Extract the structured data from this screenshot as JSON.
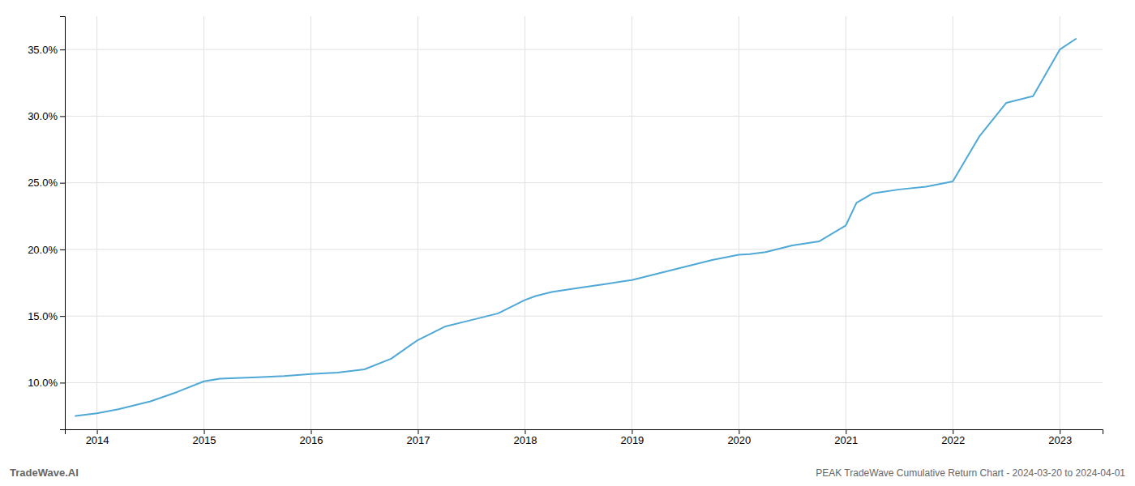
{
  "chart_data": {
    "type": "line",
    "title": "PEAK TradeWave Cumulative Return Chart - 2024-03-20 to 2024-04-01",
    "annotations": [
      "TradeWave.AI"
    ],
    "color": "#4fa8d5",
    "x": [
      2013.8,
      2014.0,
      2014.2,
      2014.5,
      2014.75,
      2015.0,
      2015.15,
      2015.3,
      2015.5,
      2015.75,
      2016.0,
      2016.1,
      2016.25,
      2016.5,
      2016.75,
      2017.0,
      2017.25,
      2017.5,
      2017.75,
      2018.0,
      2018.1,
      2018.25,
      2018.5,
      2018.75,
      2019.0,
      2019.25,
      2019.5,
      2019.75,
      2020.0,
      2020.1,
      2020.25,
      2020.5,
      2020.75,
      2021.0,
      2021.1,
      2021.25,
      2021.5,
      2021.75,
      2022.0,
      2022.25,
      2022.5,
      2022.75,
      2023.0,
      2023.15
    ],
    "values": [
      7.5,
      7.7,
      8.0,
      8.6,
      9.3,
      10.1,
      10.3,
      10.35,
      10.4,
      10.5,
      10.65,
      10.7,
      10.75,
      11.0,
      11.8,
      13.2,
      14.2,
      14.7,
      15.2,
      16.2,
      16.5,
      16.8,
      17.1,
      17.4,
      17.7,
      18.2,
      18.7,
      19.2,
      19.6,
      19.65,
      19.8,
      20.3,
      20.6,
      21.8,
      23.5,
      24.2,
      24.5,
      24.7,
      25.1,
      28.5,
      31.0,
      31.5,
      35.0,
      35.8
    ],
    "xlim": [
      2013.7,
      2023.4
    ],
    "ylim": [
      6.5,
      37.5
    ],
    "xticks": [
      2014,
      2015,
      2016,
      2017,
      2018,
      2019,
      2020,
      2021,
      2022,
      2023
    ],
    "yticks": [
      {
        "value": 10.0,
        "label": "10.0%"
      },
      {
        "value": 15.0,
        "label": "15.0%"
      },
      {
        "value": 20.0,
        "label": "20.0%"
      },
      {
        "value": 25.0,
        "label": "25.0%"
      },
      {
        "value": 30.0,
        "label": "30.0%"
      },
      {
        "value": 35.0,
        "label": "35.0%"
      }
    ],
    "grid": true
  }
}
